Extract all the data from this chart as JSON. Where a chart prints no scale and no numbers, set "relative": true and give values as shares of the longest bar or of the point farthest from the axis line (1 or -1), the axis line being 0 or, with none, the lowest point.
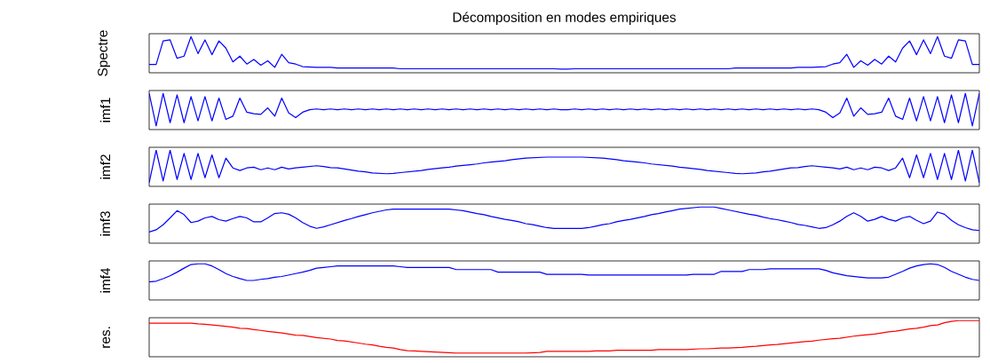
{
  "chart_data": [
    {
      "type": "line",
      "relative": true,
      "title": "Décomposition en modes empiriques",
      "ylabel": "Spectre",
      "color": "#0000ff",
      "categories": [
        null,
        null,
        null,
        null,
        null,
        null,
        null,
        null,
        null,
        null,
        null,
        null,
        null,
        null,
        null,
        null,
        null,
        null,
        null,
        null,
        null,
        null,
        null,
        null,
        null,
        null,
        null,
        null,
        null,
        null,
        null,
        null,
        null,
        null,
        null,
        null,
        null,
        null,
        null,
        null,
        null,
        null,
        null,
        null,
        null,
        null,
        null,
        null,
        null,
        null,
        null,
        null,
        null,
        null,
        null,
        null,
        null,
        null,
        null,
        null,
        null,
        null,
        null,
        null,
        null,
        null,
        null,
        null,
        null,
        null,
        null,
        null,
        null,
        null,
        null,
        null,
        null,
        null,
        null,
        null,
        null,
        null,
        null,
        null,
        null,
        null,
        null,
        null,
        null,
        null,
        null,
        null,
        null,
        null,
        null,
        null,
        null,
        null,
        null,
        null,
        null,
        null,
        null,
        null,
        null,
        null,
        null,
        null,
        null,
        null,
        null,
        null,
        null,
        null,
        null,
        null,
        null,
        null,
        null,
        null
      ],
      "values": [
        0.23,
        0.23,
        0.88,
        0.91,
        0.4,
        0.46,
        1.0,
        0.53,
        0.91,
        0.5,
        0.88,
        0.68,
        0.3,
        0.46,
        0.24,
        0.37,
        0.21,
        0.33,
        0.15,
        0.51,
        0.28,
        0.24,
        0.17,
        0.16,
        0.15,
        0.15,
        0.15,
        0.13,
        0.13,
        0.13,
        0.13,
        0.13,
        0.13,
        0.13,
        0.13,
        0.13,
        0.11,
        0.11,
        0.11,
        0.11,
        0.11,
        0.11,
        0.11,
        0.11,
        0.11,
        0.11,
        0.11,
        0.11,
        0.11,
        0.11,
        0.11,
        0.11,
        0.11,
        0.11,
        0.11,
        0.11,
        0.11,
        0.11,
        0.11,
        0.1,
        0.1,
        0.11,
        0.11,
        0.11,
        0.11,
        0.11,
        0.11,
        0.11,
        0.11,
        0.11,
        0.11,
        0.11,
        0.11,
        0.11,
        0.11,
        0.11,
        0.11,
        0.11,
        0.11,
        0.11,
        0.11,
        0.11,
        0.11,
        0.11,
        0.13,
        0.13,
        0.13,
        0.13,
        0.13,
        0.13,
        0.13,
        0.13,
        0.13,
        0.15,
        0.15,
        0.15,
        0.16,
        0.17,
        0.24,
        0.28,
        0.51,
        0.15,
        0.33,
        0.21,
        0.37,
        0.24,
        0.46,
        0.3,
        0.68,
        0.88,
        0.5,
        0.91,
        0.53,
        1.0,
        0.46,
        0.4,
        0.91,
        0.88,
        0.23,
        0.23
      ]
    },
    {
      "type": "line",
      "relative": true,
      "ylabel": "imf1",
      "color": "#0000ff",
      "categories": [
        null,
        null,
        null,
        null,
        null,
        null,
        null,
        null,
        null,
        null,
        null,
        null,
        null,
        null,
        null,
        null,
        null,
        null,
        null,
        null,
        null,
        null,
        null,
        null,
        null,
        null,
        null,
        null,
        null,
        null,
        null,
        null,
        null,
        null,
        null,
        null,
        null,
        null,
        null,
        null,
        null,
        null,
        null,
        null,
        null,
        null,
        null,
        null,
        null,
        null,
        null,
        null,
        null,
        null,
        null,
        null,
        null,
        null,
        null,
        null,
        null,
        null,
        null,
        null,
        null,
        null,
        null,
        null,
        null,
        null,
        null,
        null,
        null,
        null,
        null,
        null,
        null,
        null,
        null,
        null,
        null,
        null,
        null,
        null,
        null,
        null,
        null,
        null,
        null,
        null,
        null,
        null,
        null,
        null,
        null,
        null,
        null,
        null,
        null,
        null,
        null,
        null,
        null,
        null,
        null,
        null,
        null,
        null,
        null,
        null,
        null,
        null,
        null,
        null,
        null,
        null,
        null,
        null,
        null,
        null
      ],
      "values": [
        1.0,
        0.1,
        1.0,
        0.19,
        0.96,
        0.19,
        0.91,
        0.24,
        0.91,
        0.24,
        0.87,
        0.28,
        0.37,
        0.87,
        0.48,
        0.44,
        0.42,
        0.6,
        0.37,
        0.87,
        0.46,
        0.33,
        0.48,
        0.55,
        0.57,
        0.55,
        0.57,
        0.55,
        0.57,
        0.55,
        0.57,
        0.55,
        0.57,
        0.55,
        0.57,
        0.55,
        0.57,
        0.55,
        0.57,
        0.55,
        0.57,
        0.55,
        0.57,
        0.55,
        0.57,
        0.55,
        0.57,
        0.55,
        0.57,
        0.55,
        0.57,
        0.55,
        0.57,
        0.55,
        0.57,
        0.55,
        0.57,
        0.55,
        0.57,
        0.55,
        0.55,
        0.57,
        0.55,
        0.57,
        0.55,
        0.57,
        0.55,
        0.57,
        0.55,
        0.57,
        0.55,
        0.57,
        0.55,
        0.57,
        0.55,
        0.57,
        0.55,
        0.57,
        0.55,
        0.57,
        0.55,
        0.57,
        0.55,
        0.57,
        0.55,
        0.57,
        0.55,
        0.57,
        0.55,
        0.57,
        0.55,
        0.57,
        0.55,
        0.57,
        0.55,
        0.57,
        0.55,
        0.48,
        0.33,
        0.46,
        0.87,
        0.37,
        0.6,
        0.42,
        0.44,
        0.48,
        0.87,
        0.37,
        0.28,
        0.87,
        0.24,
        0.91,
        0.24,
        0.91,
        0.19,
        0.96,
        0.19,
        1.0,
        0.1,
        1.0
      ]
    },
    {
      "type": "line",
      "relative": true,
      "ylabel": "imf2",
      "color": "#0000ff",
      "categories": [
        null,
        null,
        null,
        null,
        null,
        null,
        null,
        null,
        null,
        null,
        null,
        null,
        null,
        null,
        null,
        null,
        null,
        null,
        null,
        null,
        null,
        null,
        null,
        null,
        null,
        null,
        null,
        null,
        null,
        null,
        null,
        null,
        null,
        null,
        null,
        null,
        null,
        null,
        null,
        null,
        null,
        null,
        null,
        null,
        null,
        null,
        null,
        null,
        null,
        null,
        null,
        null,
        null,
        null,
        null,
        null,
        null,
        null,
        null,
        null,
        null,
        null,
        null,
        null,
        null,
        null,
        null,
        null,
        null,
        null,
        null,
        null,
        null,
        null,
        null,
        null,
        null,
        null,
        null,
        null,
        null,
        null,
        null,
        null,
        null,
        null,
        null,
        null,
        null,
        null,
        null,
        null,
        null,
        null,
        null,
        null,
        null,
        null,
        null,
        null,
        null,
        null,
        null,
        null,
        null,
        null,
        null,
        null,
        null,
        null,
        null,
        null,
        null,
        null,
        null,
        null,
        null,
        null,
        null,
        null
      ],
      "values": [
        0.1,
        1.0,
        0.15,
        1.0,
        0.19,
        0.91,
        0.19,
        0.91,
        0.24,
        0.87,
        0.24,
        0.78,
        0.51,
        0.44,
        0.51,
        0.53,
        0.46,
        0.51,
        0.46,
        0.53,
        0.48,
        0.51,
        0.53,
        0.55,
        0.57,
        0.55,
        0.52,
        0.51,
        0.48,
        0.45,
        0.42,
        0.4,
        0.37,
        0.36,
        0.35,
        0.36,
        0.38,
        0.4,
        0.42,
        0.44,
        0.47,
        0.49,
        0.51,
        0.53,
        0.56,
        0.58,
        0.6,
        0.62,
        0.65,
        0.67,
        0.69,
        0.71,
        0.74,
        0.76,
        0.78,
        0.79,
        0.8,
        0.81,
        0.81,
        0.81,
        0.81,
        0.81,
        0.81,
        0.8,
        0.79,
        0.78,
        0.76,
        0.74,
        0.71,
        0.69,
        0.67,
        0.65,
        0.62,
        0.6,
        0.58,
        0.56,
        0.53,
        0.51,
        0.49,
        0.47,
        0.44,
        0.42,
        0.4,
        0.38,
        0.36,
        0.35,
        0.36,
        0.37,
        0.4,
        0.42,
        0.45,
        0.48,
        0.51,
        0.52,
        0.55,
        0.57,
        0.55,
        0.53,
        0.51,
        0.48,
        0.53,
        0.46,
        0.51,
        0.46,
        0.53,
        0.51,
        0.44,
        0.51,
        0.78,
        0.24,
        0.87,
        0.24,
        0.91,
        0.19,
        0.91,
        0.19,
        1.0,
        0.15,
        1.0,
        0.1
      ]
    },
    {
      "type": "line",
      "relative": true,
      "ylabel": "imf3",
      "color": "#0000ff",
      "categories": [
        null,
        null,
        null,
        null,
        null,
        null,
        null,
        null,
        null,
        null,
        null,
        null,
        null,
        null,
        null,
        null,
        null,
        null,
        null,
        null,
        null,
        null,
        null,
        null,
        null,
        null,
        null,
        null,
        null,
        null,
        null,
        null,
        null,
        null,
        null,
        null,
        null,
        null,
        null,
        null,
        null,
        null,
        null,
        null,
        null,
        null,
        null,
        null,
        null,
        null,
        null,
        null,
        null,
        null,
        null,
        null,
        null,
        null,
        null,
        null,
        null,
        null,
        null,
        null,
        null,
        null,
        null,
        null,
        null,
        null,
        null,
        null,
        null,
        null,
        null,
        null,
        null,
        null,
        null,
        null,
        null,
        null,
        null,
        null,
        null,
        null,
        null,
        null,
        null,
        null,
        null,
        null,
        null,
        null,
        null,
        null,
        null,
        null,
        null,
        null,
        null,
        null,
        null,
        null,
        null,
        null,
        null,
        null,
        null,
        null,
        null,
        null,
        null,
        null,
        null,
        null,
        null,
        null,
        null,
        null
      ],
      "values": [
        0.31,
        0.37,
        0.51,
        0.7,
        0.9,
        0.79,
        0.57,
        0.61,
        0.7,
        0.74,
        0.65,
        0.61,
        0.68,
        0.74,
        0.7,
        0.59,
        0.59,
        0.7,
        0.82,
        0.84,
        0.8,
        0.7,
        0.57,
        0.47,
        0.41,
        0.45,
        0.51,
        0.57,
        0.63,
        0.68,
        0.74,
        0.79,
        0.84,
        0.88,
        0.92,
        0.94,
        0.94,
        0.94,
        0.94,
        0.94,
        0.94,
        0.94,
        0.94,
        0.94,
        0.92,
        0.9,
        0.86,
        0.82,
        0.79,
        0.74,
        0.7,
        0.66,
        0.63,
        0.59,
        0.54,
        0.51,
        0.47,
        0.43,
        0.41,
        0.41,
        0.41,
        0.41,
        0.41,
        0.43,
        0.47,
        0.51,
        0.54,
        0.59,
        0.63,
        0.66,
        0.7,
        0.74,
        0.79,
        0.82,
        0.86,
        0.9,
        0.94,
        0.96,
        0.98,
        1.0,
        1.0,
        1.0,
        0.96,
        0.92,
        0.88,
        0.84,
        0.8,
        0.77,
        0.72,
        0.68,
        0.65,
        0.61,
        0.57,
        0.52,
        0.49,
        0.45,
        0.41,
        0.43,
        0.51,
        0.61,
        0.74,
        0.84,
        0.74,
        0.61,
        0.66,
        0.74,
        0.66,
        0.61,
        0.7,
        0.74,
        0.63,
        0.54,
        0.61,
        0.86,
        0.8,
        0.63,
        0.51,
        0.43,
        0.37,
        0.35
      ]
    },
    {
      "type": "line",
      "relative": true,
      "ylabel": "imf4",
      "color": "#0000ff",
      "categories": [
        null,
        null,
        null,
        null,
        null,
        null,
        null,
        null,
        null,
        null,
        null,
        null,
        null,
        null,
        null,
        null,
        null,
        null,
        null,
        null,
        null,
        null,
        null,
        null,
        null,
        null,
        null,
        null,
        null,
        null,
        null,
        null,
        null,
        null,
        null,
        null,
        null,
        null,
        null,
        null,
        null,
        null,
        null,
        null,
        null,
        null,
        null,
        null,
        null,
        null,
        null,
        null,
        null,
        null,
        null,
        null,
        null,
        null,
        null,
        null,
        null,
        null,
        null,
        null,
        null,
        null,
        null,
        null,
        null,
        null,
        null,
        null,
        null,
        null,
        null,
        null,
        null,
        null,
        null,
        null,
        null,
        null,
        null,
        null,
        null,
        null,
        null,
        null,
        null,
        null,
        null,
        null,
        null,
        null,
        null,
        null,
        null,
        null,
        null,
        null,
        null,
        null,
        null,
        null,
        null,
        null,
        null,
        null,
        null,
        null,
        null,
        null,
        null,
        null,
        null,
        null,
        null,
        null,
        null,
        null
      ],
      "values": [
        0.5,
        0.52,
        0.59,
        0.67,
        0.77,
        0.88,
        0.98,
        1.0,
        1.0,
        0.94,
        0.84,
        0.73,
        0.65,
        0.59,
        0.54,
        0.54,
        0.57,
        0.59,
        0.63,
        0.65,
        0.69,
        0.73,
        0.77,
        0.82,
        0.88,
        0.9,
        0.92,
        0.94,
        0.94,
        0.94,
        0.94,
        0.94,
        0.94,
        0.94,
        0.94,
        0.94,
        0.92,
        0.9,
        0.9,
        0.9,
        0.9,
        0.9,
        0.9,
        0.9,
        0.84,
        0.84,
        0.84,
        0.84,
        0.84,
        0.84,
        0.77,
        0.77,
        0.77,
        0.77,
        0.77,
        0.77,
        0.77,
        0.71,
        0.71,
        0.71,
        0.71,
        0.71,
        0.71,
        0.69,
        0.69,
        0.69,
        0.69,
        0.69,
        0.69,
        0.69,
        0.69,
        0.69,
        0.69,
        0.69,
        0.69,
        0.69,
        0.69,
        0.69,
        0.71,
        0.71,
        0.71,
        0.71,
        0.79,
        0.79,
        0.79,
        0.79,
        0.84,
        0.84,
        0.84,
        0.86,
        0.86,
        0.86,
        0.86,
        0.86,
        0.86,
        0.86,
        0.86,
        0.82,
        0.75,
        0.71,
        0.67,
        0.65,
        0.63,
        0.61,
        0.61,
        0.61,
        0.63,
        0.71,
        0.79,
        0.88,
        0.94,
        0.98,
        1.0,
        0.98,
        0.9,
        0.79,
        0.71,
        0.63,
        0.57,
        0.54
      ]
    },
    {
      "type": "line",
      "relative": true,
      "ylabel": "res.",
      "color": "#ff0000",
      "categories": [
        null,
        null,
        null,
        null,
        null,
        null,
        null,
        null,
        null,
        null,
        null,
        null,
        null,
        null,
        null,
        null,
        null,
        null,
        null,
        null,
        null,
        null,
        null,
        null,
        null,
        null,
        null,
        null,
        null,
        null,
        null,
        null,
        null,
        null,
        null,
        null,
        null,
        null,
        null,
        null,
        null,
        null,
        null,
        null,
        null,
        null,
        null,
        null,
        null,
        null,
        null,
        null,
        null,
        null,
        null,
        null,
        null,
        null,
        null,
        null,
        null,
        null,
        null,
        null,
        null,
        null,
        null,
        null,
        null,
        null,
        null,
        null,
        null,
        null,
        null,
        null,
        null,
        null,
        null,
        null,
        null,
        null,
        null,
        null,
        null,
        null,
        null,
        null,
        null,
        null,
        null,
        null,
        null,
        null,
        null,
        null,
        null,
        null,
        null,
        null,
        null,
        null,
        null,
        null,
        null,
        null,
        null,
        null,
        null,
        null,
        null,
        null,
        null,
        null,
        null,
        null,
        null,
        null,
        null,
        null
      ],
      "values": [
        0.93,
        0.93,
        0.93,
        0.93,
        0.93,
        0.93,
        0.93,
        0.91,
        0.9,
        0.88,
        0.86,
        0.84,
        0.82,
        0.79,
        0.78,
        0.75,
        0.73,
        0.7,
        0.68,
        0.66,
        0.63,
        0.6,
        0.59,
        0.56,
        0.53,
        0.51,
        0.49,
        0.45,
        0.44,
        0.41,
        0.38,
        0.35,
        0.33,
        0.29,
        0.26,
        0.24,
        0.2,
        0.17,
        0.16,
        0.15,
        0.14,
        0.13,
        0.12,
        0.11,
        0.1,
        0.1,
        0.1,
        0.1,
        0.1,
        0.1,
        0.1,
        0.1,
        0.1,
        0.1,
        0.1,
        0.11,
        0.12,
        0.15,
        0.15,
        0.15,
        0.15,
        0.15,
        0.15,
        0.15,
        0.16,
        0.16,
        0.16,
        0.18,
        0.18,
        0.18,
        0.18,
        0.18,
        0.18,
        0.2,
        0.2,
        0.2,
        0.2,
        0.2,
        0.21,
        0.22,
        0.22,
        0.23,
        0.24,
        0.24,
        0.25,
        0.26,
        0.28,
        0.29,
        0.31,
        0.33,
        0.34,
        0.36,
        0.38,
        0.4,
        0.42,
        0.43,
        0.46,
        0.48,
        0.5,
        0.51,
        0.54,
        0.57,
        0.59,
        0.61,
        0.63,
        0.66,
        0.69,
        0.71,
        0.74,
        0.77,
        0.79,
        0.82,
        0.86,
        0.88,
        0.94,
        0.98,
        1.0,
        1.0,
        1.0,
        1.0
      ]
    }
  ]
}
